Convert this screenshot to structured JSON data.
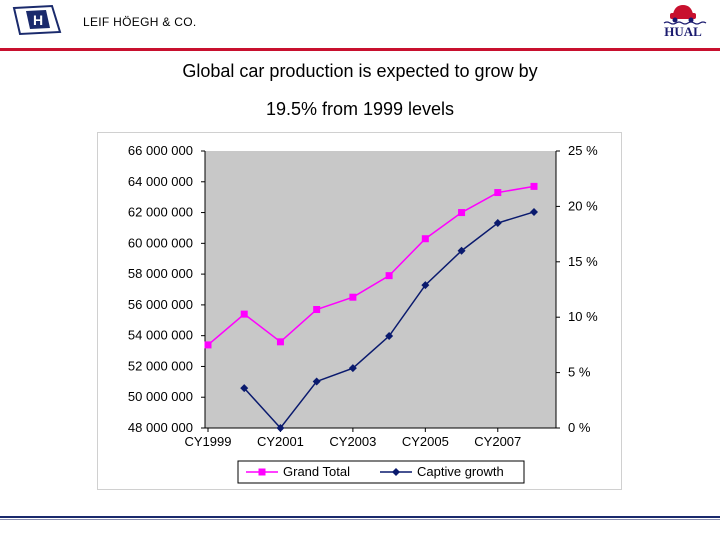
{
  "header": {
    "company": "LEIF HÖEGH & CO.",
    "logo_left_letter": "H",
    "logo_right_text": "HUAL"
  },
  "slide": {
    "title_line1": "Global car production is expected to grow by",
    "title_line2": "19.5% from 1999 levels"
  },
  "colors": {
    "grand_total": "#ff00ff",
    "captive_growth": "#0a1a6e",
    "plot_bg": "#c8c8c8",
    "accent_red": "#c8102e",
    "accent_navy": "#1a2a6c"
  },
  "chart_data": {
    "type": "line",
    "x": [
      1999,
      2000,
      2001,
      2002,
      2003,
      2004,
      2005,
      2006,
      2007,
      2008
    ],
    "xtick_labels": [
      "CY1999",
      "CY2001",
      "CY2003",
      "CY2005",
      "CY2007"
    ],
    "series": [
      {
        "name": "Grand Total",
        "axis": "left",
        "marker": "square",
        "values": [
          53400000,
          55400000,
          53600000,
          55700000,
          56500000,
          57900000,
          60300000,
          62000000,
          63300000,
          63700000
        ]
      },
      {
        "name": "Captive growth",
        "axis": "right",
        "marker": "diamond",
        "values": [
          null,
          3.6,
          0.0,
          4.2,
          5.4,
          8.3,
          12.9,
          16.0,
          18.5,
          19.5
        ]
      }
    ],
    "ylim_left": [
      48000000,
      66000000
    ],
    "yticks_left_labels": [
      "48 000 000",
      "50 000 000",
      "52 000 000",
      "54 000 000",
      "56 000 000",
      "58 000 000",
      "60 000 000",
      "62 000 000",
      "64 000 000",
      "66 000 000"
    ],
    "ylim_right": [
      0,
      25
    ],
    "yticks_right_labels": [
      "0 %",
      "5 %",
      "10 %",
      "15 %",
      "20 %",
      "25 %"
    ],
    "legend": [
      "Grand Total",
      "Captive growth"
    ],
    "legend_position": "bottom",
    "grid": false
  }
}
